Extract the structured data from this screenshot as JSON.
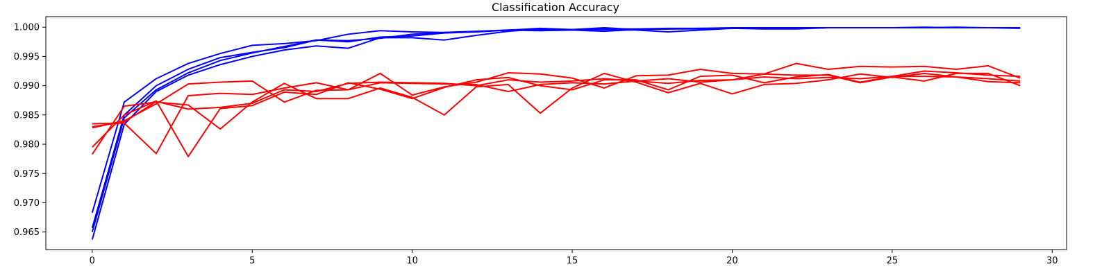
{
  "chart_data": {
    "type": "line",
    "title": "Classification Accuracy",
    "xlabel": "",
    "ylabel": "",
    "xlim": [
      -1.45,
      30.45
    ],
    "ylim": [
      0.962,
      1.0018
    ],
    "x_ticks": [
      "0",
      "5",
      "10",
      "15",
      "20",
      "25",
      "30"
    ],
    "y_ticks": [
      "0.965",
      "0.970",
      "0.975",
      "0.980",
      "0.985",
      "0.990",
      "0.995",
      "1.000"
    ],
    "grid": false,
    "legend": "none",
    "x": [
      0,
      1,
      2,
      3,
      4,
      5,
      6,
      7,
      8,
      9,
      10,
      11,
      12,
      13,
      14,
      15,
      16,
      17,
      18,
      19,
      20,
      21,
      22,
      23,
      24,
      25,
      26,
      27,
      28,
      29
    ],
    "series": [
      {
        "color": "#0000ff",
        "values": [
          0.9683,
          0.9872,
          0.9912,
          0.9938,
          0.9955,
          0.9969,
          0.9972,
          0.9977,
          0.9988,
          0.9994,
          0.9992,
          0.9991,
          0.9993,
          0.9995,
          0.9996,
          0.9996,
          0.9997,
          0.9997,
          0.9998,
          0.9998,
          0.9998,
          0.9999,
          0.9999,
          0.9999,
          0.9999,
          0.9999,
          0.9999,
          0.9999,
          0.9999,
          0.9999
        ]
      },
      {
        "color": "#0000ff",
        "values": [
          0.9637,
          0.9834,
          0.989,
          0.9918,
          0.9936,
          0.995,
          0.9961,
          0.9968,
          0.9964,
          0.9982,
          0.9982,
          0.9978,
          0.9986,
          0.9993,
          0.9997,
          0.9995,
          0.9996,
          0.9995,
          0.9992,
          0.9995,
          0.9998,
          0.9997,
          0.9997,
          0.9999,
          0.9999,
          0.9999,
          1.0,
          0.9999,
          0.9999,
          0.9999
        ]
      },
      {
        "color": "#0000ff",
        "values": [
          0.965,
          0.9845,
          0.9893,
          0.9922,
          0.9943,
          0.9956,
          0.9967,
          0.9978,
          0.9975,
          0.9983,
          0.9985,
          0.999,
          0.9992,
          0.9995,
          0.9994,
          0.9995,
          0.9993,
          0.9996,
          0.9997,
          0.9997,
          0.9998,
          0.9998,
          0.9998,
          0.9999,
          0.9999,
          0.9999,
          0.9999,
          1.0,
          0.9999,
          0.9999
        ]
      },
      {
        "color": "#0000ff",
        "values": [
          0.9657,
          0.985,
          0.99,
          0.9928,
          0.9948,
          0.9957,
          0.9965,
          0.9978,
          0.9977,
          0.9981,
          0.9988,
          0.9991,
          0.9992,
          0.9995,
          0.9998,
          0.9996,
          0.9999,
          0.9996,
          0.9997,
          0.9998,
          0.9999,
          0.9999,
          0.9998,
          0.9999,
          0.9999,
          0.9999,
          0.9999,
          0.9999,
          0.9999,
          0.9998
        ]
      },
      {
        "color": "#ff0000",
        "values": [
          0.9783,
          0.9865,
          0.9872,
          0.9867,
          0.9826,
          0.9872,
          0.9904,
          0.9878,
          0.9878,
          0.9896,
          0.988,
          0.985,
          0.9898,
          0.9902,
          0.9853,
          0.9896,
          0.9921,
          0.9906,
          0.9888,
          0.9904,
          0.9886,
          0.9902,
          0.9904,
          0.991,
          0.992,
          0.9914,
          0.9921,
          0.9915,
          0.9912,
          0.9908
        ]
      },
      {
        "color": "#ff0000",
        "values": [
          0.9828,
          0.984,
          0.9869,
          0.9903,
          0.9906,
          0.9908,
          0.9872,
          0.9892,
          0.9893,
          0.9921,
          0.9884,
          0.9898,
          0.9906,
          0.9922,
          0.992,
          0.9913,
          0.9896,
          0.9917,
          0.9918,
          0.9928,
          0.9921,
          0.992,
          0.9918,
          0.9918,
          0.9905,
          0.9915,
          0.9908,
          0.9921,
          0.9921,
          0.99
        ]
      },
      {
        "color": "#ff0000",
        "values": [
          0.9835,
          0.9836,
          0.9784,
          0.9883,
          0.9887,
          0.9885,
          0.9896,
          0.9905,
          0.9893,
          0.9905,
          0.9904,
          0.9903,
          0.9902,
          0.989,
          0.9902,
          0.9905,
          0.9903,
          0.9908,
          0.9912,
          0.9906,
          0.991,
          0.992,
          0.9938,
          0.9928,
          0.9933,
          0.9932,
          0.9933,
          0.9928,
          0.9934,
          0.9913
        ]
      },
      {
        "color": "#ff0000",
        "values": [
          0.9795,
          0.985,
          0.9874,
          0.9779,
          0.9861,
          0.9866,
          0.9889,
          0.9885,
          0.9905,
          0.9894,
          0.9878,
          0.9897,
          0.991,
          0.9914,
          0.99,
          0.9893,
          0.991,
          0.991,
          0.9893,
          0.9916,
          0.9918,
          0.9905,
          0.9915,
          0.9919,
          0.9906,
          0.9916,
          0.9925,
          0.9922,
          0.9918,
          0.9916
        ]
      },
      {
        "color": "#ff0000",
        "values": [
          0.983,
          0.9838,
          0.9873,
          0.986,
          0.9863,
          0.987,
          0.9893,
          0.989,
          0.9904,
          0.9906,
          0.9905,
          0.9904,
          0.99,
          0.991,
          0.9906,
          0.9908,
          0.9912,
          0.9908,
          0.9904,
          0.9909,
          0.991,
          0.9915,
          0.9912,
          0.9914,
          0.9912,
          0.9916,
          0.9916,
          0.9915,
          0.9907,
          0.9905
        ]
      }
    ]
  }
}
